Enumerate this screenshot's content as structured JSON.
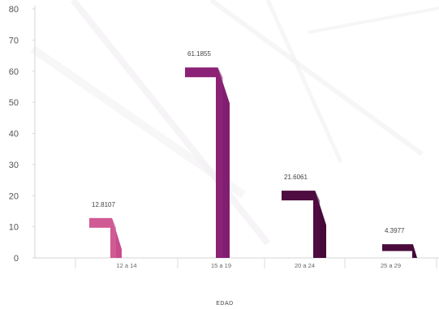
{
  "chart_data": {
    "type": "bar",
    "categories": [
      "12 a 14",
      "15 a 19",
      "20 a 24",
      "25 a 29"
    ],
    "values": [
      12.8107,
      61.1855,
      21.6061,
      4.3977
    ],
    "value_labels": [
      "12.8107",
      "61.1855",
      "21.6061",
      "4.3977"
    ],
    "title": "",
    "xlabel": "EDAD",
    "ylabel": "",
    "ylim": [
      0,
      80
    ],
    "y_ticks": [
      0,
      10,
      20,
      30,
      40,
      50,
      60,
      70,
      80
    ],
    "grid": false,
    "legend": "none",
    "colors": [
      "#d05a94",
      "#8b2276",
      "#4e0c40",
      "#4a0a3c"
    ],
    "colors_dark": [
      "#c53f86",
      "#7a1c69",
      "#3f0833",
      "#2d0525"
    ]
  }
}
